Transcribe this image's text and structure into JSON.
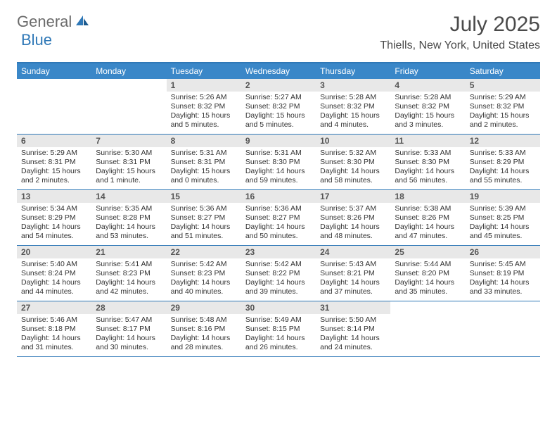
{
  "logo": {
    "text_a": "General",
    "text_b": "Blue"
  },
  "title": "July 2025",
  "location": "Thiells, New York, United States",
  "colors": {
    "header_bar": "#3a87c8",
    "border": "#2f78b7",
    "daynum_bg": "#e8e8e8",
    "logo_gray": "#6b6b6b",
    "logo_blue": "#2f78b7",
    "title_color": "#4a4a4a"
  },
  "weekdays": [
    "Sunday",
    "Monday",
    "Tuesday",
    "Wednesday",
    "Thursday",
    "Friday",
    "Saturday"
  ],
  "weeks": [
    [
      {
        "empty": true
      },
      {
        "empty": true
      },
      {
        "num": "1",
        "sunrise": "Sunrise: 5:26 AM",
        "sunset": "Sunset: 8:32 PM",
        "daylight1": "Daylight: 15 hours",
        "daylight2": "and 5 minutes."
      },
      {
        "num": "2",
        "sunrise": "Sunrise: 5:27 AM",
        "sunset": "Sunset: 8:32 PM",
        "daylight1": "Daylight: 15 hours",
        "daylight2": "and 5 minutes."
      },
      {
        "num": "3",
        "sunrise": "Sunrise: 5:28 AM",
        "sunset": "Sunset: 8:32 PM",
        "daylight1": "Daylight: 15 hours",
        "daylight2": "and 4 minutes."
      },
      {
        "num": "4",
        "sunrise": "Sunrise: 5:28 AM",
        "sunset": "Sunset: 8:32 PM",
        "daylight1": "Daylight: 15 hours",
        "daylight2": "and 3 minutes."
      },
      {
        "num": "5",
        "sunrise": "Sunrise: 5:29 AM",
        "sunset": "Sunset: 8:32 PM",
        "daylight1": "Daylight: 15 hours",
        "daylight2": "and 2 minutes."
      }
    ],
    [
      {
        "num": "6",
        "sunrise": "Sunrise: 5:29 AM",
        "sunset": "Sunset: 8:31 PM",
        "daylight1": "Daylight: 15 hours",
        "daylight2": "and 2 minutes."
      },
      {
        "num": "7",
        "sunrise": "Sunrise: 5:30 AM",
        "sunset": "Sunset: 8:31 PM",
        "daylight1": "Daylight: 15 hours",
        "daylight2": "and 1 minute."
      },
      {
        "num": "8",
        "sunrise": "Sunrise: 5:31 AM",
        "sunset": "Sunset: 8:31 PM",
        "daylight1": "Daylight: 15 hours",
        "daylight2": "and 0 minutes."
      },
      {
        "num": "9",
        "sunrise": "Sunrise: 5:31 AM",
        "sunset": "Sunset: 8:30 PM",
        "daylight1": "Daylight: 14 hours",
        "daylight2": "and 59 minutes."
      },
      {
        "num": "10",
        "sunrise": "Sunrise: 5:32 AM",
        "sunset": "Sunset: 8:30 PM",
        "daylight1": "Daylight: 14 hours",
        "daylight2": "and 58 minutes."
      },
      {
        "num": "11",
        "sunrise": "Sunrise: 5:33 AM",
        "sunset": "Sunset: 8:30 PM",
        "daylight1": "Daylight: 14 hours",
        "daylight2": "and 56 minutes."
      },
      {
        "num": "12",
        "sunrise": "Sunrise: 5:33 AM",
        "sunset": "Sunset: 8:29 PM",
        "daylight1": "Daylight: 14 hours",
        "daylight2": "and 55 minutes."
      }
    ],
    [
      {
        "num": "13",
        "sunrise": "Sunrise: 5:34 AM",
        "sunset": "Sunset: 8:29 PM",
        "daylight1": "Daylight: 14 hours",
        "daylight2": "and 54 minutes."
      },
      {
        "num": "14",
        "sunrise": "Sunrise: 5:35 AM",
        "sunset": "Sunset: 8:28 PM",
        "daylight1": "Daylight: 14 hours",
        "daylight2": "and 53 minutes."
      },
      {
        "num": "15",
        "sunrise": "Sunrise: 5:36 AM",
        "sunset": "Sunset: 8:27 PM",
        "daylight1": "Daylight: 14 hours",
        "daylight2": "and 51 minutes."
      },
      {
        "num": "16",
        "sunrise": "Sunrise: 5:36 AM",
        "sunset": "Sunset: 8:27 PM",
        "daylight1": "Daylight: 14 hours",
        "daylight2": "and 50 minutes."
      },
      {
        "num": "17",
        "sunrise": "Sunrise: 5:37 AM",
        "sunset": "Sunset: 8:26 PM",
        "daylight1": "Daylight: 14 hours",
        "daylight2": "and 48 minutes."
      },
      {
        "num": "18",
        "sunrise": "Sunrise: 5:38 AM",
        "sunset": "Sunset: 8:26 PM",
        "daylight1": "Daylight: 14 hours",
        "daylight2": "and 47 minutes."
      },
      {
        "num": "19",
        "sunrise": "Sunrise: 5:39 AM",
        "sunset": "Sunset: 8:25 PM",
        "daylight1": "Daylight: 14 hours",
        "daylight2": "and 45 minutes."
      }
    ],
    [
      {
        "num": "20",
        "sunrise": "Sunrise: 5:40 AM",
        "sunset": "Sunset: 8:24 PM",
        "daylight1": "Daylight: 14 hours",
        "daylight2": "and 44 minutes."
      },
      {
        "num": "21",
        "sunrise": "Sunrise: 5:41 AM",
        "sunset": "Sunset: 8:23 PM",
        "daylight1": "Daylight: 14 hours",
        "daylight2": "and 42 minutes."
      },
      {
        "num": "22",
        "sunrise": "Sunrise: 5:42 AM",
        "sunset": "Sunset: 8:23 PM",
        "daylight1": "Daylight: 14 hours",
        "daylight2": "and 40 minutes."
      },
      {
        "num": "23",
        "sunrise": "Sunrise: 5:42 AM",
        "sunset": "Sunset: 8:22 PM",
        "daylight1": "Daylight: 14 hours",
        "daylight2": "and 39 minutes."
      },
      {
        "num": "24",
        "sunrise": "Sunrise: 5:43 AM",
        "sunset": "Sunset: 8:21 PM",
        "daylight1": "Daylight: 14 hours",
        "daylight2": "and 37 minutes."
      },
      {
        "num": "25",
        "sunrise": "Sunrise: 5:44 AM",
        "sunset": "Sunset: 8:20 PM",
        "daylight1": "Daylight: 14 hours",
        "daylight2": "and 35 minutes."
      },
      {
        "num": "26",
        "sunrise": "Sunrise: 5:45 AM",
        "sunset": "Sunset: 8:19 PM",
        "daylight1": "Daylight: 14 hours",
        "daylight2": "and 33 minutes."
      }
    ],
    [
      {
        "num": "27",
        "sunrise": "Sunrise: 5:46 AM",
        "sunset": "Sunset: 8:18 PM",
        "daylight1": "Daylight: 14 hours",
        "daylight2": "and 31 minutes."
      },
      {
        "num": "28",
        "sunrise": "Sunrise: 5:47 AM",
        "sunset": "Sunset: 8:17 PM",
        "daylight1": "Daylight: 14 hours",
        "daylight2": "and 30 minutes."
      },
      {
        "num": "29",
        "sunrise": "Sunrise: 5:48 AM",
        "sunset": "Sunset: 8:16 PM",
        "daylight1": "Daylight: 14 hours",
        "daylight2": "and 28 minutes."
      },
      {
        "num": "30",
        "sunrise": "Sunrise: 5:49 AM",
        "sunset": "Sunset: 8:15 PM",
        "daylight1": "Daylight: 14 hours",
        "daylight2": "and 26 minutes."
      },
      {
        "num": "31",
        "sunrise": "Sunrise: 5:50 AM",
        "sunset": "Sunset: 8:14 PM",
        "daylight1": "Daylight: 14 hours",
        "daylight2": "and 24 minutes."
      },
      {
        "empty": true
      },
      {
        "empty": true
      }
    ]
  ]
}
